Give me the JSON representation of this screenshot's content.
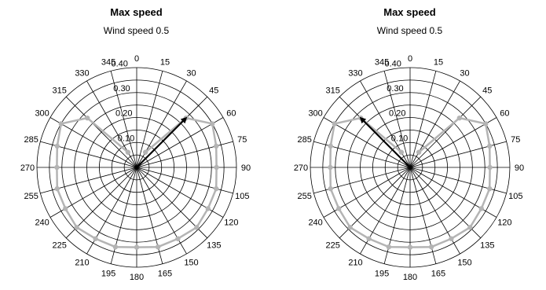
{
  "chart_data": [
    {
      "type": "polar-line",
      "title": "Max speed",
      "subtitle": "Wind speed 0.5",
      "r_ticks": [
        "0.10",
        "0.20",
        "0.30",
        "0.40"
      ],
      "r_max": 0.4,
      "angle_labels": [
        "0",
        "15",
        "30",
        "45",
        "60",
        "75",
        "90",
        "105",
        "120",
        "135",
        "150",
        "165",
        "180",
        "195",
        "210",
        "225",
        "240",
        "255",
        "270",
        "285",
        "300",
        "315",
        "330",
        "345"
      ],
      "series": [
        {
          "angles": [
            30,
            45,
            60,
            75,
            90,
            105,
            120,
            135,
            150,
            165,
            180,
            195,
            210,
            225,
            240,
            255,
            270,
            285,
            300,
            315,
            330
          ],
          "values": [
            0.07,
            0.28,
            0.35,
            0.33,
            0.32,
            0.33,
            0.33,
            0.34,
            0.33,
            0.33,
            0.32,
            0.33,
            0.33,
            0.34,
            0.33,
            0.33,
            0.32,
            0.33,
            0.35,
            0.28,
            0.07
          ],
          "color": "#b4b4b4"
        }
      ],
      "arrow": {
        "angle": 45,
        "value": 0.28,
        "color": "#000000"
      }
    },
    {
      "type": "polar-line",
      "title": "Max speed",
      "subtitle": "Wind speed 0.5",
      "r_ticks": [
        "0.10",
        "0.20",
        "0.30",
        "0.40"
      ],
      "r_max": 0.4,
      "angle_labels": [
        "0",
        "15",
        "30",
        "45",
        "60",
        "75",
        "90",
        "105",
        "120",
        "135",
        "150",
        "165",
        "180",
        "195",
        "210",
        "225",
        "240",
        "255",
        "270",
        "285",
        "300",
        "315",
        "330",
        "345"
      ],
      "series": [
        {
          "angles": [
            30,
            45,
            60,
            75,
            90,
            105,
            120,
            135,
            150,
            165,
            180,
            195,
            210,
            225,
            240,
            255,
            270,
            285,
            300,
            315,
            330
          ],
          "values": [
            0.07,
            0.28,
            0.35,
            0.33,
            0.32,
            0.33,
            0.33,
            0.34,
            0.33,
            0.33,
            0.32,
            0.33,
            0.33,
            0.34,
            0.33,
            0.33,
            0.32,
            0.33,
            0.35,
            0.28,
            0.07
          ],
          "color": "#b4b4b4"
        }
      ],
      "arrow": {
        "angle": 315,
        "value": 0.28,
        "color": "#000000"
      }
    }
  ]
}
